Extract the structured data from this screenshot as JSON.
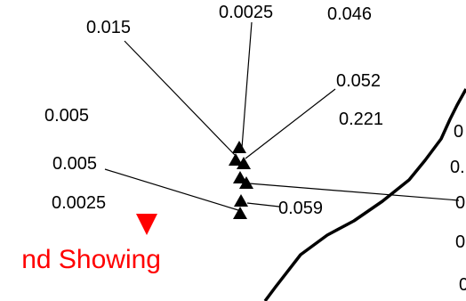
{
  "map": {
    "colors": {
      "sample_marker": "#000000",
      "red_marker": "#ff0000",
      "red_text": "#ff0000",
      "boundary": "#000000"
    },
    "sample_labels": [
      "0.015",
      "0.0025",
      "0.046",
      "0.052",
      "0.221",
      "0.005",
      "0.005",
      "0.0025",
      "0.059"
    ],
    "edge_labels": [
      "0",
      "0.",
      "0",
      "0",
      "0"
    ],
    "red_label": "nd Showing",
    "marker_icons": {
      "sample": "triangle-up-icon",
      "red": "triangle-down-icon"
    }
  }
}
